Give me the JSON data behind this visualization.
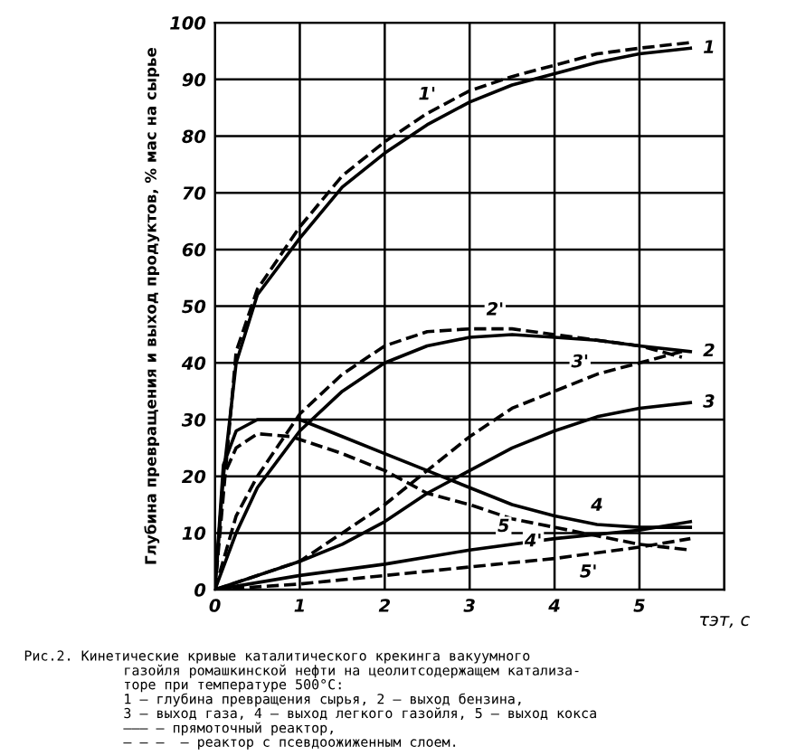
{
  "chart_data": {
    "type": "line",
    "xlabel": "τэт, с",
    "ylabel": "Глубина превращения и выход продуктов, % мас на сырье",
    "xlim": [
      0,
      6
    ],
    "xticks": [
      0,
      1,
      2,
      3,
      4,
      5,
      {
        "value": 6,
        "label": null
      }
    ],
    "ylim": [
      0,
      100
    ],
    "yticks": [
      0,
      10,
      20,
      30,
      40,
      50,
      60,
      70,
      80,
      90,
      100
    ],
    "grid": true,
    "legend": false,
    "marker": "none",
    "series": [
      {
        "color": "#000000",
        "line_style": "solid",
        "x": [
          0,
          0.1,
          0.25,
          0.5,
          1,
          1.5,
          2,
          2.5,
          3,
          3.5,
          4,
          4.5,
          5,
          5.6
        ],
        "values": [
          0,
          20,
          40,
          52,
          62,
          71,
          77,
          82,
          86,
          89,
          91,
          93,
          94.5,
          95.5
        ]
      },
      {
        "color": "#000000",
        "line_style": "dashed",
        "x": [
          0,
          0.25,
          0.5,
          1,
          1.5,
          2,
          2.5,
          3,
          3.5,
          4,
          4.5,
          5,
          5.6
        ],
        "values": [
          0,
          42,
          53,
          64,
          73,
          79,
          84,
          88,
          90.5,
          92.5,
          94.5,
          95.5,
          96.5
        ]
      },
      {
        "color": "#000000",
        "line_style": "solid",
        "x": [
          0,
          0.25,
          0.5,
          1,
          1.5,
          2,
          2.5,
          3,
          3.5,
          4,
          4.5,
          5,
          5.6
        ],
        "values": [
          0,
          10,
          18,
          28,
          35,
          40,
          43,
          44.5,
          45,
          44.5,
          44,
          43,
          42
        ]
      },
      {
        "color": "#000000",
        "line_style": "dashed",
        "x": [
          0,
          0.25,
          0.5,
          1,
          1.5,
          2,
          2.5,
          3,
          3.5,
          4,
          4.5,
          5,
          5.5
        ],
        "values": [
          0,
          13,
          20,
          31,
          38,
          43,
          45.5,
          46,
          46,
          45,
          44,
          43,
          41
        ]
      },
      {
        "color": "#000000",
        "line_style": "solid",
        "x": [
          0,
          1,
          1.5,
          2,
          2.5,
          3,
          3.5,
          4,
          4.5,
          5,
          5.6
        ],
        "values": [
          0,
          5,
          8,
          12,
          17,
          21,
          25,
          28,
          30.5,
          32,
          33
        ]
      },
      {
        "color": "#000000",
        "line_style": "dashed",
        "x": [
          0,
          1,
          1.5,
          2,
          2.5,
          3,
          3.5,
          4,
          4.5,
          5,
          5.5
        ],
        "values": [
          0,
          5,
          10,
          15,
          21,
          27,
          32,
          35,
          38,
          40,
          42
        ]
      },
      {
        "color": "#000000",
        "line_style": "solid",
        "x": [
          0,
          0.1,
          0.25,
          0.5,
          1,
          1.5,
          2,
          2.5,
          3,
          3.5,
          4,
          4.5,
          5,
          5.6
        ],
        "values": [
          0,
          22,
          28,
          30,
          30,
          27,
          24,
          21,
          18,
          15,
          13,
          11.5,
          11,
          11
        ]
      },
      {
        "color": "#000000",
        "line_style": "dashed",
        "x": [
          0,
          0.1,
          0.25,
          0.5,
          0.9,
          1.5,
          2,
          2.5,
          3,
          3.5,
          4,
          4.5,
          5,
          5.6
        ],
        "values": [
          0,
          20,
          25,
          27.5,
          27,
          24,
          21,
          17,
          15,
          12.5,
          11,
          9.5,
          8,
          7
        ]
      },
      {
        "color": "#000000",
        "line_style": "solid",
        "x": [
          0,
          1,
          2,
          3,
          4,
          5,
          5.6
        ],
        "values": [
          0,
          2.5,
          4.5,
          7,
          9,
          10.5,
          12
        ]
      },
      {
        "color": "#000000",
        "line_style": "dashed",
        "x": [
          0,
          1,
          2,
          3,
          4,
          5,
          5.6
        ],
        "values": [
          0,
          1,
          2.5,
          4,
          5.5,
          7.5,
          9
        ]
      }
    ],
    "annotations": [
      {
        "text": "1",
        "x": 5.6,
        "y": 95.5
      },
      {
        "text": "1'",
        "x": 2.5,
        "y": 84
      },
      {
        "text": "2'",
        "x": 3.3,
        "y": 46
      },
      {
        "text": "2",
        "x": 5.6,
        "y": 42
      },
      {
        "text": "3'",
        "x": 4.3,
        "y": 36.8
      },
      {
        "text": "3",
        "x": 5.6,
        "y": 33
      },
      {
        "text": "4'",
        "x": 3.75,
        "y": 11.75
      },
      {
        "text": "4",
        "x": 4.5,
        "y": 11.5
      },
      {
        "text": "5",
        "x": 3.4,
        "y": 7.8
      },
      {
        "text": "5'",
        "x": 4.4,
        "y": 6.3
      },
      "Рис.2. Кинетические кривые каталитического крекинга вакуумного",
      "газойля ромашкинской нефти на цеолитсодержащем катализа-",
      "торе при температуре 500°С:",
      "1 – глубина превращения сырья, 2 – выход бензина,",
      "3 – выход газа, 4 – выход легкого газойля, 5 – выход кокса",
      "——— – прямоточный реактор,",
      "– – –  – реактор с псевдоожиженным слоем."
    ]
  }
}
